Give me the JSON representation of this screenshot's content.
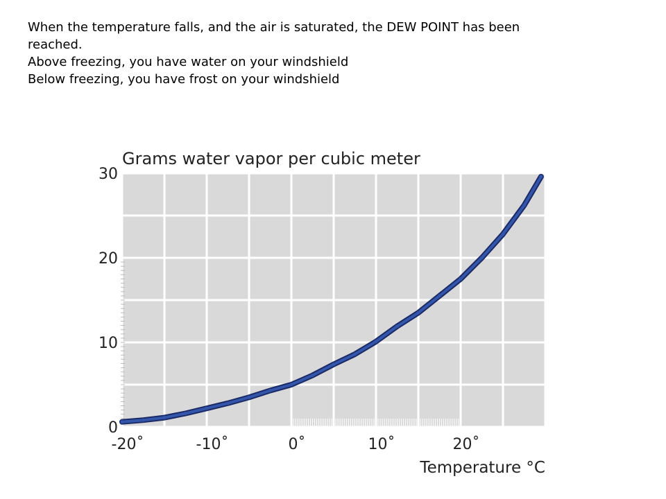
{
  "text": {
    "line1": "When the temperature falls, and the air is saturated, the DEW POINT has been",
    "line2": "reached.",
    "line3": "Above freezing, you have water on your windshield",
    "line4": "Below freezing, you have frost on your windshield"
  },
  "chart_data": {
    "type": "line",
    "title": "Grams water vapor per cubic meter",
    "xlabel": "Temperature °C",
    "ylabel": "",
    "xlim": [
      -20,
      30
    ],
    "ylim": [
      0,
      30
    ],
    "x_ticks": [
      -20,
      -10,
      0,
      10,
      20
    ],
    "x_tick_labels": [
      "-20˚",
      "-10˚",
      "0˚",
      "10˚",
      "20˚"
    ],
    "y_ticks": [
      0,
      10,
      20,
      30
    ],
    "y_tick_labels": [
      "0",
      "10",
      "20",
      "30"
    ],
    "grid": true,
    "colors": {
      "plot_bg": "#d9d9d9",
      "grid": "#ffffff",
      "line": "#3355aa",
      "line_edge": "#1a2a66"
    },
    "series": [
      {
        "x": [
          -20,
          -17.5,
          -15,
          -12.5,
          -10,
          -7.5,
          -5,
          -2.5,
          0,
          2.5,
          5,
          7.5,
          10,
          12.5,
          15,
          17.5,
          20,
          22.5,
          25,
          27.5,
          29.5
        ],
        "y": [
          0.6,
          0.8,
          1.1,
          1.6,
          2.2,
          2.8,
          3.5,
          4.3,
          5.0,
          6.1,
          7.4,
          8.6,
          10.1,
          11.9,
          13.5,
          15.5,
          17.5,
          20.0,
          22.8,
          26.2,
          29.6
        ]
      }
    ]
  }
}
